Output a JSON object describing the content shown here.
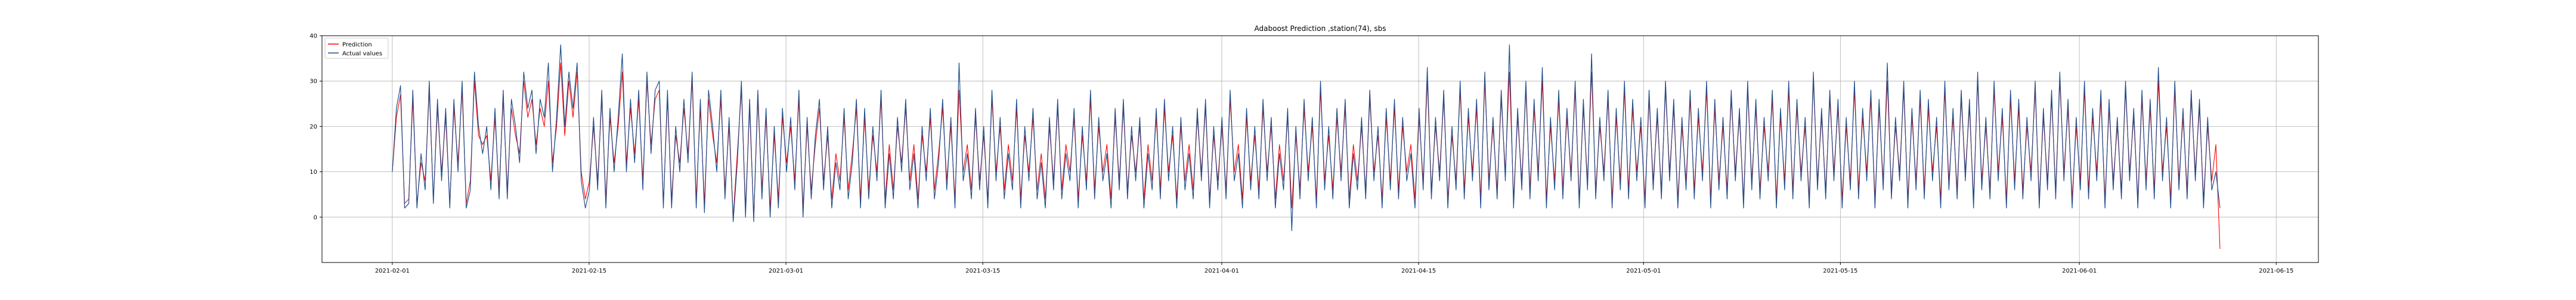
{
  "chart_data": {
    "type": "line",
    "title": "Adaboost Prediction ,station(74), sbs",
    "xlabel": "",
    "ylabel": "",
    "x_ticks": [
      "2021-02-01",
      "2021-02-15",
      "2021-03-01",
      "2021-03-15",
      "2021-04-01",
      "2021-04-15",
      "2021-05-01",
      "2021-05-15",
      "2021-06-01",
      "2021-06-15"
    ],
    "y_ticks": [
      "0",
      "10",
      "20",
      "30",
      "40"
    ],
    "x_range": [
      "2021-01-27",
      "2021-06-18"
    ],
    "x_start": "2021-02-01",
    "x_end": "2021-06-11",
    "ylim": [
      -10,
      40
    ],
    "grid": true,
    "legend_position": "top-left",
    "series": [
      {
        "name": "Prediction",
        "color": "#ff0000",
        "values": [
          10,
          22,
          27,
          3,
          4,
          26,
          3,
          12,
          8,
          28,
          4,
          24,
          10,
          22,
          3,
          24,
          12,
          28,
          3,
          8,
          30,
          18,
          16,
          18,
          8,
          22,
          6,
          26,
          6,
          24,
          18,
          14,
          30,
          22,
          26,
          16,
          24,
          20,
          30,
          12,
          20,
          34,
          18,
          30,
          22,
          32,
          10,
          4,
          8,
          20,
          8,
          26,
          4,
          22,
          12,
          20,
          32,
          12,
          24,
          14,
          26,
          8,
          30,
          16,
          26,
          28,
          3,
          26,
          4,
          18,
          12,
          24,
          14,
          30,
          4,
          24,
          3,
          26,
          18,
          12,
          26,
          6,
          20,
          0,
          14,
          28,
          2,
          24,
          0,
          26,
          6,
          22,
          2,
          18,
          4,
          22,
          12,
          20,
          8,
          26,
          2,
          20,
          6,
          16,
          24,
          8,
          18,
          4,
          14,
          8,
          22,
          6,
          14,
          24,
          4,
          22,
          6,
          18,
          10,
          26,
          4,
          16,
          6,
          20,
          12,
          24,
          8,
          16,
          4,
          18,
          10,
          22,
          6,
          14,
          24,
          8,
          20,
          4,
          28,
          10,
          16,
          6,
          22,
          8,
          18,
          4,
          26,
          10,
          20,
          6,
          16,
          8,
          24,
          4,
          18,
          10,
          22,
          6,
          14,
          4,
          20,
          8,
          24,
          6,
          16,
          10,
          22,
          4,
          18,
          8,
          26,
          6,
          20,
          10,
          16,
          4,
          22,
          8,
          24,
          6,
          18,
          10,
          20,
          4,
          16,
          8,
          22,
          6,
          24,
          10,
          18,
          4,
          20,
          8,
          16,
          6,
          22,
          10,
          24,
          4,
          18,
          8,
          20,
          6,
          26,
          10,
          16,
          4,
          22,
          8,
          18,
          6,
          24,
          10,
          20,
          4,
          16,
          8,
          22,
          2,
          18,
          6,
          24,
          10,
          20,
          4,
          28,
          8,
          18,
          6,
          22,
          10,
          24,
          4,
          16,
          8,
          20,
          6,
          26,
          10,
          18,
          4,
          22,
          8,
          24,
          6,
          20,
          10,
          16,
          4,
          22,
          8,
          30,
          6,
          20,
          10,
          26,
          4,
          18,
          8,
          28,
          6,
          22,
          10,
          24,
          4,
          30,
          8,
          20,
          6,
          26,
          10,
          32,
          4,
          22,
          8,
          28,
          6,
          24,
          10,
          30,
          4,
          20,
          8,
          26,
          6,
          22,
          10,
          28,
          4,
          24,
          8,
          32,
          6,
          20,
          10,
          26,
          4,
          22,
          8,
          28,
          6,
          24,
          10,
          20,
          4,
          26,
          8,
          22,
          6,
          28,
          10,
          24,
          4,
          20,
          8,
          26,
          6,
          22,
          10,
          28,
          4,
          24,
          8,
          20,
          6,
          26,
          10,
          22,
          4,
          28,
          8,
          24,
          6,
          20,
          10,
          26,
          4,
          22,
          8,
          28,
          6,
          24,
          10,
          20,
          4,
          30,
          8,
          22,
          6,
          26,
          10,
          24,
          4,
          20,
          8,
          28,
          6,
          22,
          10,
          26,
          4,
          24,
          8,
          30,
          6,
          20,
          10,
          28,
          4,
          22,
          8,
          26,
          6,
          24,
          10,
          20,
          4,
          28,
          8,
          22,
          6,
          26,
          10,
          24,
          4,
          30,
          8,
          20,
          6,
          28,
          10,
          22,
          4,
          26,
          8,
          24,
          6,
          20,
          10,
          28,
          4,
          22,
          8,
          26,
          6,
          30,
          10,
          24,
          4,
          20,
          8,
          28,
          6,
          22,
          10,
          26,
          4,
          24,
          8,
          20,
          6,
          28,
          10,
          22,
          4,
          26,
          8,
          24,
          6,
          30,
          10,
          20,
          4,
          28,
          8,
          22,
          6,
          26,
          10,
          24,
          4,
          20,
          8,
          16,
          -7
        ]
      },
      {
        "name": "Actual values",
        "color": "#1f4e8c",
        "values": [
          10,
          24,
          29,
          2,
          3,
          28,
          2,
          14,
          6,
          30,
          3,
          26,
          8,
          24,
          2,
          26,
          10,
          30,
          2,
          6,
          32,
          20,
          14,
          20,
          6,
          24,
          4,
          28,
          4,
          26,
          20,
          12,
          32,
          24,
          28,
          14,
          26,
          22,
          34,
          10,
          22,
          38,
          20,
          32,
          24,
          34,
          8,
          2,
          6,
          22,
          6,
          28,
          2,
          24,
          10,
          22,
          36,
          10,
          26,
          12,
          28,
          6,
          32,
          14,
          28,
          30,
          2,
          28,
          2,
          20,
          10,
          26,
          12,
          32,
          2,
          26,
          1,
          28,
          20,
          10,
          28,
          4,
          22,
          -1,
          12,
          30,
          0,
          26,
          -1,
          28,
          4,
          24,
          0,
          20,
          2,
          24,
          10,
          22,
          6,
          28,
          0,
          22,
          4,
          18,
          26,
          6,
          20,
          2,
          12,
          6,
          24,
          4,
          12,
          26,
          2,
          24,
          4,
          20,
          8,
          28,
          2,
          14,
          4,
          22,
          10,
          26,
          6,
          14,
          2,
          20,
          8,
          24,
          4,
          12,
          26,
          6,
          22,
          2,
          34,
          8,
          14,
          4,
          24,
          6,
          20,
          2,
          28,
          8,
          22,
          4,
          14,
          6,
          26,
          2,
          20,
          8,
          24,
          4,
          12,
          2,
          22,
          6,
          26,
          4,
          14,
          8,
          24,
          2,
          20,
          6,
          28,
          4,
          22,
          8,
          14,
          2,
          24,
          6,
          26,
          4,
          20,
          8,
          22,
          2,
          14,
          6,
          24,
          4,
          26,
          8,
          20,
          2,
          22,
          6,
          14,
          4,
          24,
          8,
          26,
          2,
          20,
          6,
          22,
          4,
          28,
          8,
          14,
          2,
          24,
          6,
          20,
          4,
          26,
          8,
          22,
          2,
          14,
          6,
          24,
          -3,
          20,
          4,
          26,
          8,
          22,
          2,
          30,
          6,
          20,
          4,
          24,
          8,
          26,
          2,
          14,
          6,
          22,
          4,
          28,
          8,
          20,
          2,
          24,
          6,
          26,
          4,
          22,
          8,
          14,
          2,
          24,
          6,
          33,
          4,
          22,
          8,
          28,
          2,
          20,
          6,
          30,
          4,
          24,
          8,
          26,
          2,
          32,
          6,
          22,
          4,
          28,
          8,
          38,
          2,
          24,
          6,
          30,
          4,
          26,
          8,
          33,
          2,
          22,
          6,
          28,
          4,
          24,
          8,
          30,
          2,
          26,
          6,
          36,
          4,
          22,
          8,
          28,
          2,
          24,
          6,
          30,
          4,
          26,
          8,
          22,
          2,
          28,
          6,
          24,
          4,
          30,
          8,
          26,
          2,
          22,
          6,
          28,
          4,
          24,
          8,
          30,
          2,
          26,
          6,
          22,
          4,
          28,
          8,
          24,
          2,
          30,
          6,
          26,
          4,
          22,
          8,
          28,
          2,
          24,
          6,
          30,
          4,
          26,
          8,
          22,
          2,
          32,
          6,
          24,
          4,
          28,
          8,
          26,
          2,
          22,
          6,
          30,
          4,
          24,
          8,
          28,
          2,
          26,
          6,
          34,
          4,
          22,
          8,
          30,
          2,
          24,
          6,
          28,
          4,
          26,
          8,
          22,
          2,
          30,
          6,
          24,
          4,
          28,
          8,
          26,
          2,
          32,
          6,
          22,
          4,
          30,
          8,
          24,
          2,
          28,
          6,
          26,
          4,
          22,
          8,
          30,
          2,
          24,
          6,
          28,
          4,
          32,
          8,
          26,
          2,
          22,
          6,
          30,
          4,
          24,
          8,
          28,
          2,
          26,
          6,
          22,
          4,
          30,
          8,
          24,
          2,
          28,
          6,
          26,
          4,
          33,
          8,
          22,
          2,
          30,
          6,
          24,
          4,
          28,
          8,
          26,
          2,
          22,
          6,
          10,
          2
        ]
      }
    ]
  }
}
